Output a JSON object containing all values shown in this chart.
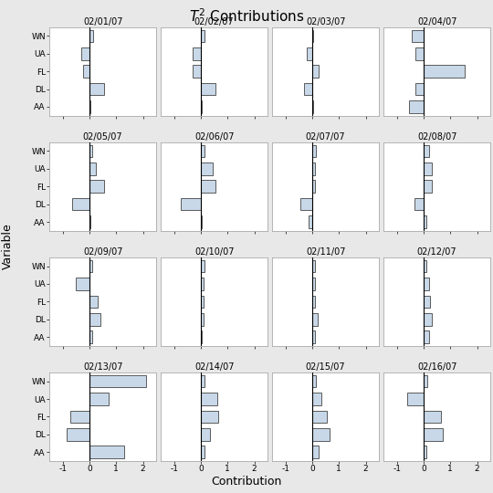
{
  "title": "T² Contributions",
  "dates": [
    "02/01/07",
    "02/02/07",
    "02/03/07",
    "02/04/07",
    "02/05/07",
    "02/06/07",
    "02/07/07",
    "02/08/07",
    "02/09/07",
    "02/10/07",
    "02/11/07",
    "02/12/07",
    "02/13/07",
    "02/14/07",
    "02/15/07",
    "02/16/07"
  ],
  "variables": [
    "WN",
    "UA",
    "FL",
    "DL",
    "AA"
  ],
  "contributions": [
    [
      0.15,
      -0.3,
      -0.25,
      0.55,
      0.05
    ],
    [
      0.15,
      -0.3,
      -0.3,
      0.55,
      0.05
    ],
    [
      0.05,
      -0.2,
      0.25,
      -0.3,
      0.05
    ],
    [
      -0.45,
      -0.3,
      1.55,
      -0.3,
      -0.55
    ],
    [
      0.1,
      0.25,
      0.55,
      -0.65,
      0.05
    ],
    [
      0.15,
      0.45,
      0.55,
      -0.75,
      0.05
    ],
    [
      0.15,
      0.1,
      0.1,
      -0.45,
      -0.15
    ],
    [
      0.2,
      0.3,
      0.3,
      -0.35,
      0.1
    ],
    [
      0.1,
      -0.5,
      0.3,
      0.4,
      0.1
    ],
    [
      0.15,
      0.1,
      0.1,
      0.1,
      0.05
    ],
    [
      0.1,
      0.1,
      0.1,
      0.2,
      0.1
    ],
    [
      0.1,
      0.2,
      0.25,
      0.3,
      0.2
    ],
    [
      2.1,
      0.7,
      -0.7,
      -0.85,
      1.3
    ],
    [
      0.15,
      0.6,
      0.65,
      0.35,
      0.15
    ],
    [
      0.15,
      0.35,
      0.55,
      0.65,
      0.25
    ],
    [
      0.15,
      -0.6,
      0.65,
      0.7,
      0.1
    ]
  ],
  "xlim": [
    -1.5,
    2.5
  ],
  "xticks": [
    -1,
    0,
    1,
    2
  ],
  "bar_facecolor": "#c8d8e8",
  "bar_edgecolor": "#444444",
  "panel_facecolor": "#ffffff",
  "fig_facecolor": "#e8e8e8",
  "xlabel": "Contribution",
  "ylabel": "Variable",
  "nrows": 4,
  "ncols": 4
}
